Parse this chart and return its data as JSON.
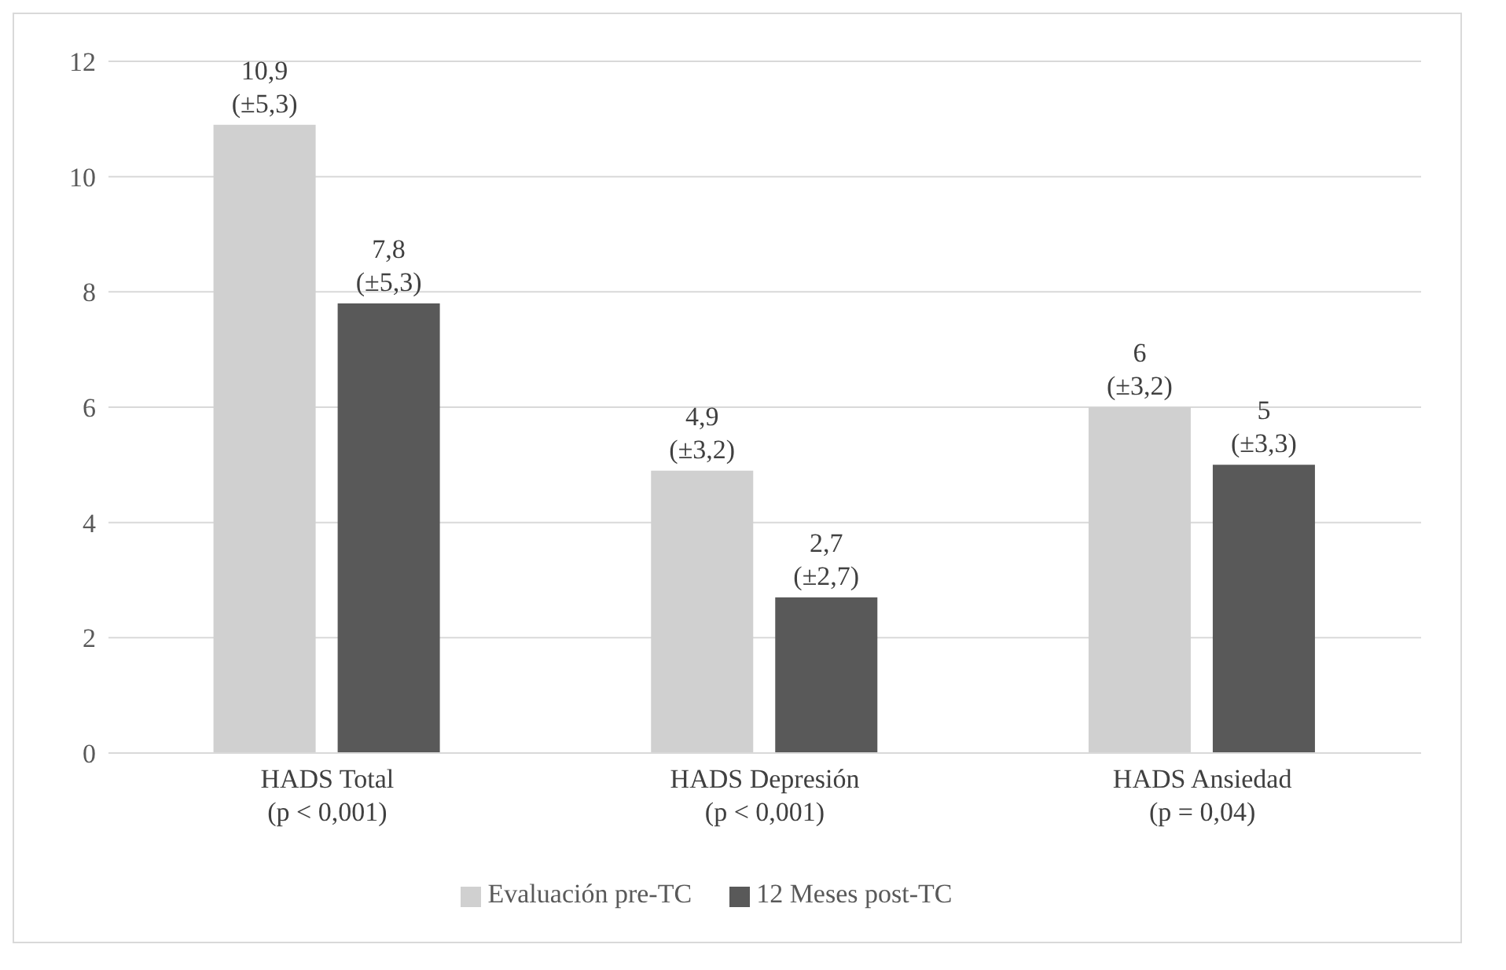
{
  "chart_data": {
    "type": "bar",
    "categories": [
      "HADS Total\n(p < 0,001)",
      "HADS Depresión\n(p < 0,001)",
      "HADS Ansiedad\n(p = 0,04)"
    ],
    "series": [
      {
        "name": "Evaluación pre-TC",
        "color": "#d0d0d0",
        "values": [
          10.9,
          4.9,
          6
        ],
        "value_labels": [
          "10,9\n(±5,3)",
          "4,9\n(±3,2)",
          "6\n(±3,2)"
        ]
      },
      {
        "name": "12 Meses post-TC",
        "color": "#595959",
        "values": [
          7.8,
          2.7,
          5
        ],
        "value_labels": [
          "7,8\n(±5,3)",
          "2,7\n(±2,7)",
          "5\n(±3,3)"
        ]
      }
    ],
    "ylim": [
      0,
      12
    ],
    "yticks": [
      0,
      2,
      4,
      6,
      8,
      10,
      12
    ],
    "grid": "y",
    "legend": "bottom"
  }
}
